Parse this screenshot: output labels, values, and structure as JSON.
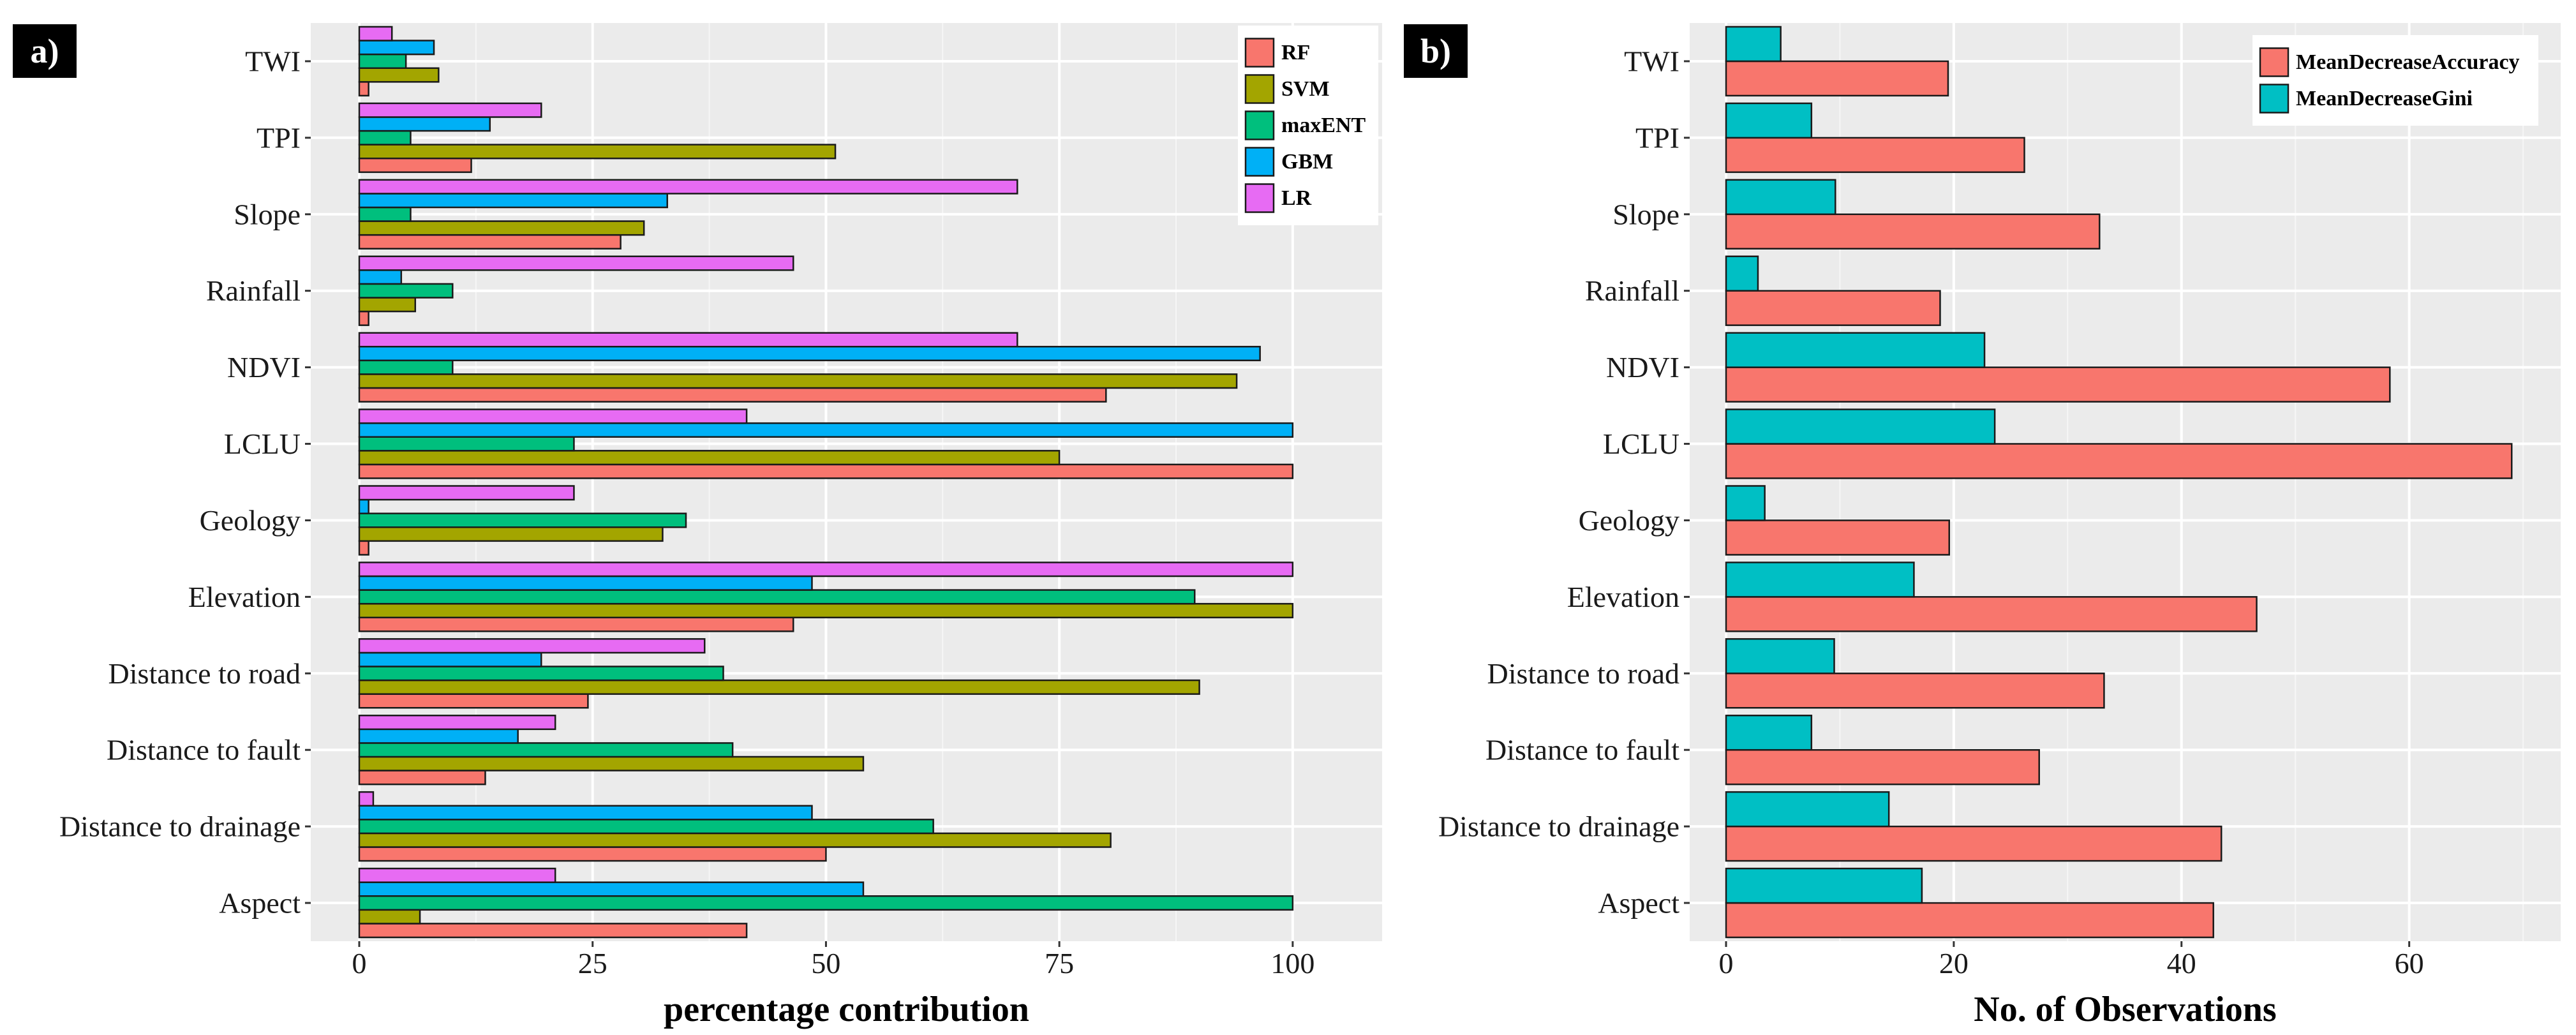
{
  "chart_data": [
    {
      "panel": "a)",
      "type": "bar",
      "orientation": "horizontal",
      "xlabel": "percentage contribution",
      "ylabel": "",
      "xlim": [
        0,
        105
      ],
      "xticks": [
        0,
        25,
        50,
        75,
        100
      ],
      "grid": true,
      "legend_position": "top-right",
      "categories": [
        "TWI",
        "TPI",
        "Slope",
        "Rainfall",
        "NDVI",
        "LCLU",
        "Geology",
        "Elevation",
        "Distance to road",
        "Distance to fault",
        "Distance to drainage",
        "Aspect"
      ],
      "series": [
        {
          "name": "RF",
          "color": "#F8766D",
          "values": [
            1,
            12,
            28,
            1,
            80,
            100,
            1,
            46.5,
            24.5,
            13.5,
            50,
            41.5
          ]
        },
        {
          "name": "SVM",
          "color": "#A3A500",
          "values": [
            8.5,
            51,
            30.5,
            6,
            94,
            75,
            32.5,
            100,
            90,
            54,
            80.5,
            6.5
          ]
        },
        {
          "name": "maxENT",
          "color": "#00BF7D",
          "values": [
            5,
            5.5,
            5.5,
            10,
            10,
            23,
            35,
            89.5,
            39,
            40,
            61.5,
            100
          ]
        },
        {
          "name": "GBM",
          "color": "#00B0F6",
          "values": [
            8,
            14,
            33,
            4.5,
            96.5,
            100,
            1,
            48.5,
            19.5,
            17,
            48.5,
            54
          ]
        },
        {
          "name": "LR",
          "color": "#E76BF3",
          "values": [
            3.5,
            19.5,
            70.5,
            46.5,
            70.5,
            41.5,
            23,
            100,
            37,
            21,
            1.5,
            21
          ]
        }
      ],
      "legend": [
        "RF",
        "SVM",
        "maxENT",
        "GBM",
        "LR"
      ]
    },
    {
      "panel": "b)",
      "type": "bar",
      "orientation": "horizontal",
      "xlabel": "No. of Observations",
      "ylabel": "",
      "xlim": [
        0,
        70.5
      ],
      "xticks": [
        0,
        20,
        40,
        60
      ],
      "grid": true,
      "legend_position": "top-right",
      "categories": [
        "TWI",
        "TPI",
        "Slope",
        "Rainfall",
        "NDVI",
        "LCLU",
        "Geology",
        "Elevation",
        "Distance to road",
        "Distance to fault",
        "Distance to drainage",
        "Aspect"
      ],
      "series": [
        {
          "name": "MeanDecreaseAccuracy",
          "color": "#F8766D",
          "values": [
            19.5,
            26.2,
            32.8,
            18.8,
            58.3,
            69,
            19.6,
            46.6,
            33.2,
            27.5,
            43.5,
            42.8
          ]
        },
        {
          "name": "MeanDecreaseGini",
          "color": "#00BFC4",
          "values": [
            4.8,
            7.5,
            9.6,
            2.8,
            22.7,
            23.6,
            3.4,
            16.5,
            9.5,
            7.5,
            14.3,
            17.2
          ]
        }
      ],
      "legend": [
        "MeanDecreaseAccuracy",
        "MeanDecreaseGini"
      ]
    }
  ]
}
